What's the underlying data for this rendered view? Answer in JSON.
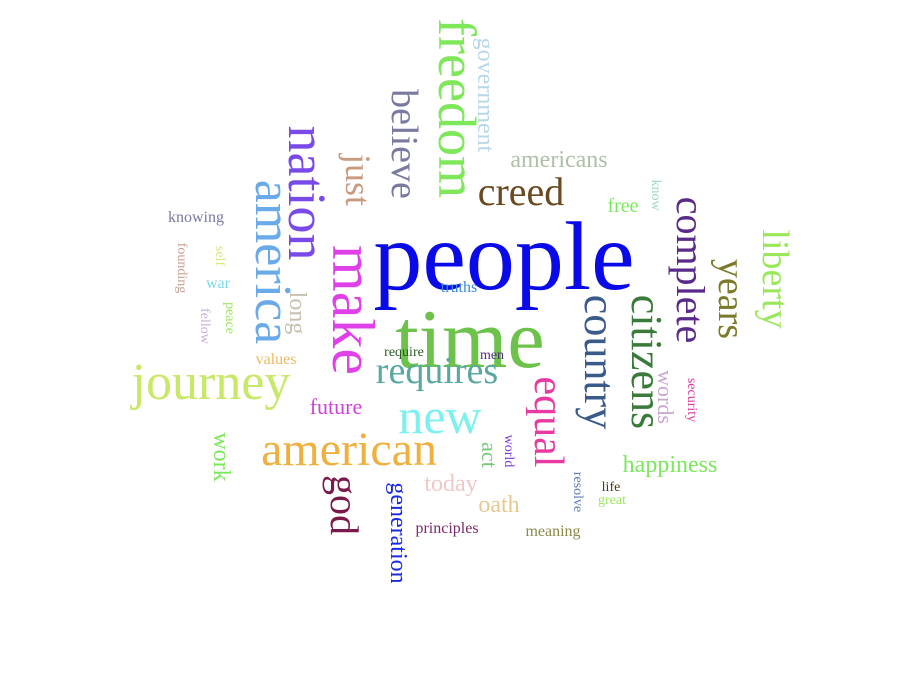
{
  "words": [
    {
      "text": "people",
      "color": "#0a0ae8"
    },
    {
      "text": "time",
      "color": "#6cc24a"
    },
    {
      "text": "make",
      "color": "#e040e8"
    },
    {
      "text": "nation",
      "color": "#7a4ae8"
    },
    {
      "text": "america",
      "color": "#6aaae8"
    },
    {
      "text": "freedom",
      "color": "#7ee85a"
    },
    {
      "text": "journey",
      "color": "#c8e86a"
    },
    {
      "text": "american",
      "color": "#f0b040"
    },
    {
      "text": "new",
      "color": "#7ef0f0"
    },
    {
      "text": "country",
      "color": "#3a5a8a"
    },
    {
      "text": "citizens",
      "color": "#3a7a3a"
    },
    {
      "text": "equal",
      "color": "#e83aa0"
    },
    {
      "text": "requires",
      "color": "#5aa8a0"
    },
    {
      "text": "creed",
      "color": "#6a4a20"
    },
    {
      "text": "complete",
      "color": "#5a2a8a"
    },
    {
      "text": "years",
      "color": "#7a7a2a"
    },
    {
      "text": "liberty",
      "color": "#9ae85a"
    },
    {
      "text": "believe",
      "color": "#7a7aa0"
    },
    {
      "text": "just",
      "color": "#c89a80"
    },
    {
      "text": "god",
      "color": "#7a1a4a"
    },
    {
      "text": "americans",
      "color": "#b0c0a8"
    },
    {
      "text": "government",
      "color": "#b8d8e8"
    },
    {
      "text": "happiness",
      "color": "#7ae85a"
    },
    {
      "text": "generation",
      "color": "#1a2ae0"
    },
    {
      "text": "long",
      "color": "#c8c0b0"
    },
    {
      "text": "work",
      "color": "#7ae85a"
    },
    {
      "text": "future",
      "color": "#d040d8"
    },
    {
      "text": "today",
      "color": "#f0c8c8"
    },
    {
      "text": "oath",
      "color": "#e8c890"
    },
    {
      "text": "words",
      "color": "#c8a8d0"
    },
    {
      "text": "act",
      "color": "#7ac87a"
    },
    {
      "text": "free",
      "color": "#7ae85a"
    },
    {
      "text": "knowing",
      "color": "#7a7aa0"
    },
    {
      "text": "founding",
      "color": "#c8a090"
    },
    {
      "text": "war",
      "color": "#7ad8e8"
    },
    {
      "text": "self",
      "color": "#d8e87a"
    },
    {
      "text": "peace",
      "color": "#9ae85a"
    },
    {
      "text": "fellow",
      "color": "#c8b0d8"
    },
    {
      "text": "values",
      "color": "#f0b860"
    },
    {
      "text": "truths",
      "color": "#3a8ad8"
    },
    {
      "text": "require",
      "color": "#2a5a2a"
    },
    {
      "text": "men",
      "color": "#5a2a8a"
    },
    {
      "text": "world",
      "color": "#7a3ad8"
    },
    {
      "text": "know",
      "color": "#9ad8c8"
    },
    {
      "text": "security",
      "color": "#d83aa0"
    },
    {
      "text": "resolve",
      "color": "#5a7ab8"
    },
    {
      "text": "life",
      "color": "#4a3a1a"
    },
    {
      "text": "great",
      "color": "#9ae85a"
    },
    {
      "text": "principles",
      "color": "#7a2a6a"
    },
    {
      "text": "meaning",
      "color": "#8a8a4a"
    }
  ]
}
